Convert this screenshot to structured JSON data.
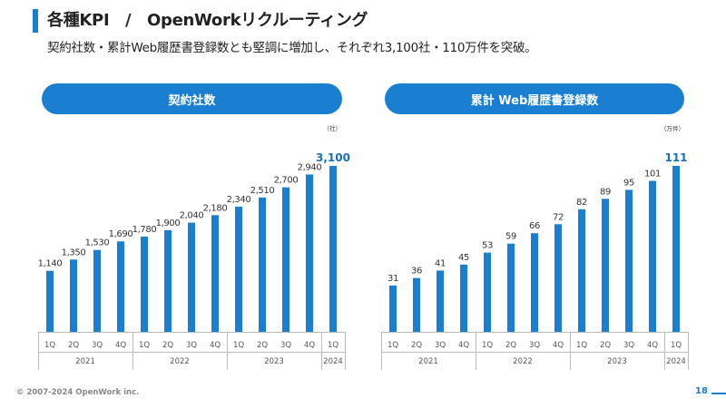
{
  "header": {
    "title": "各種KPI　/　OpenWorkリクルーティング",
    "subtitle": "契約社数・累計Web履歴書登録数とも堅調に増加し、それぞれ3,100社・110万件を突破。"
  },
  "colors": {
    "accent": "#1a7fd0",
    "highlight_label": "#1a6fb5"
  },
  "chart_data": [
    {
      "type": "bar",
      "title": "契約社数",
      "unit": "（社）",
      "categories": [
        "1Q",
        "2Q",
        "3Q",
        "4Q",
        "1Q",
        "2Q",
        "3Q",
        "4Q",
        "1Q",
        "2Q",
        "3Q",
        "4Q",
        "1Q"
      ],
      "category_labels": [
        "1Q",
        "2Q",
        "3Q",
        "4Q",
        "1Q",
        "2Q",
        "3Q",
        "4Q",
        "1Q",
        "2Q",
        "3Q",
        "4Q",
        "1Q"
      ],
      "year_groups": [
        {
          "label": "2021",
          "span": 4
        },
        {
          "label": "2022",
          "span": 4
        },
        {
          "label": "2023",
          "span": 4
        },
        {
          "label": "2024",
          "span": 1
        }
      ],
      "values": [
        1140,
        1350,
        1530,
        1690,
        1780,
        1900,
        2040,
        2180,
        2340,
        2510,
        2700,
        2940,
        3100
      ],
      "value_labels": [
        "1,140",
        "1,350",
        "1,530",
        "1,690",
        "1,780",
        "1,900",
        "2,040",
        "2,180",
        "2,340",
        "2,510",
        "2,700",
        "2,940",
        "3,100"
      ],
      "ylim": [
        0,
        3100
      ]
    },
    {
      "type": "bar",
      "title": "累計 Web履歴書登録数",
      "unit": "（万件）",
      "categories": [
        "1Q",
        "2Q",
        "3Q",
        "4Q",
        "1Q",
        "2Q",
        "3Q",
        "4Q",
        "1Q",
        "2Q",
        "3Q",
        "4Q",
        "1Q"
      ],
      "category_labels": [
        "1Q",
        "2Q",
        "3Q",
        "4Q",
        "1Q",
        "2Q",
        "3Q",
        "4Q",
        "1Q",
        "2Q",
        "3Q",
        "4Q",
        "1Q"
      ],
      "year_groups": [
        {
          "label": "2021",
          "span": 4
        },
        {
          "label": "2022",
          "span": 4
        },
        {
          "label": "2023",
          "span": 4
        },
        {
          "label": "2024",
          "span": 1
        }
      ],
      "values": [
        31,
        36,
        41,
        45,
        53,
        59,
        66,
        72,
        82,
        89,
        95,
        101,
        111
      ],
      "value_labels": [
        "31",
        "36",
        "41",
        "45",
        "53",
        "59",
        "66",
        "72",
        "82",
        "89",
        "95",
        "101",
        "111"
      ],
      "ylim": [
        0,
        111
      ]
    }
  ],
  "footer": {
    "copyright": "© 2007-2024 OpenWork inc.",
    "page_number": "18"
  }
}
